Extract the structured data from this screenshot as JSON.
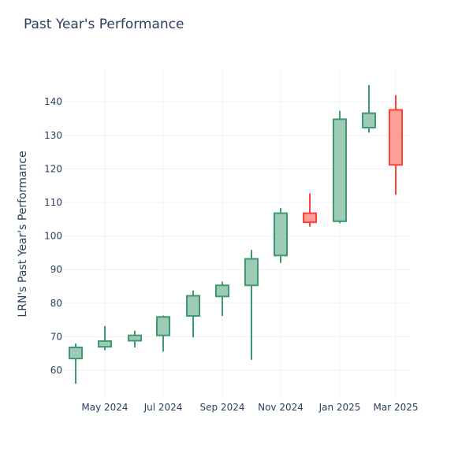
{
  "chart_data": {
    "type": "candlestick",
    "title": "Past Year's Performance",
    "xlabel": "",
    "ylabel": "LRN's Past Year's Performance",
    "ylim": [
      52,
      150
    ],
    "yticks": [
      60,
      70,
      80,
      90,
      100,
      110,
      120,
      130,
      140
    ],
    "xticks": [
      "May 2024",
      "Jul 2024",
      "Sep 2024",
      "Nov 2024",
      "Jan 2025",
      "Mar 2025"
    ],
    "grid": true,
    "increasing_color": "#3d9970",
    "increasing_fill": "#9ecbb6",
    "decreasing_color": "#ff4136",
    "decreasing_fill": "#ff9f9a",
    "candles": [
      {
        "period": "Apr 2024",
        "open": 63.5,
        "high": 68.0,
        "low": 56.0,
        "close": 66.8
      },
      {
        "period": "May 2024",
        "open": 67.0,
        "high": 73.2,
        "low": 66.0,
        "close": 68.7
      },
      {
        "period": "Jun 2024",
        "open": 68.8,
        "high": 71.8,
        "low": 66.8,
        "close": 70.4
      },
      {
        "period": "Jul 2024",
        "open": 70.4,
        "high": 76.3,
        "low": 65.6,
        "close": 75.9
      },
      {
        "period": "Aug 2024",
        "open": 76.2,
        "high": 83.8,
        "low": 69.8,
        "close": 82.2
      },
      {
        "period": "Sep 2024",
        "open": 82.0,
        "high": 86.4,
        "low": 76.2,
        "close": 85.3
      },
      {
        "period": "Oct 2024",
        "open": 85.3,
        "high": 95.9,
        "low": 63.1,
        "close": 93.2
      },
      {
        "period": "Nov 2024",
        "open": 94.2,
        "high": 108.3,
        "low": 92.0,
        "close": 106.8
      },
      {
        "period": "Dec 2024",
        "open": 106.8,
        "high": 112.7,
        "low": 102.8,
        "close": 104.1
      },
      {
        "period": "Jan 2025",
        "open": 104.4,
        "high": 137.3,
        "low": 103.8,
        "close": 134.8
      },
      {
        "period": "Feb 2025",
        "open": 132.3,
        "high": 145.0,
        "low": 130.8,
        "close": 136.6
      },
      {
        "period": "Mar 2025",
        "open": 137.6,
        "high": 142.0,
        "low": 112.3,
        "close": 121.2
      }
    ]
  }
}
